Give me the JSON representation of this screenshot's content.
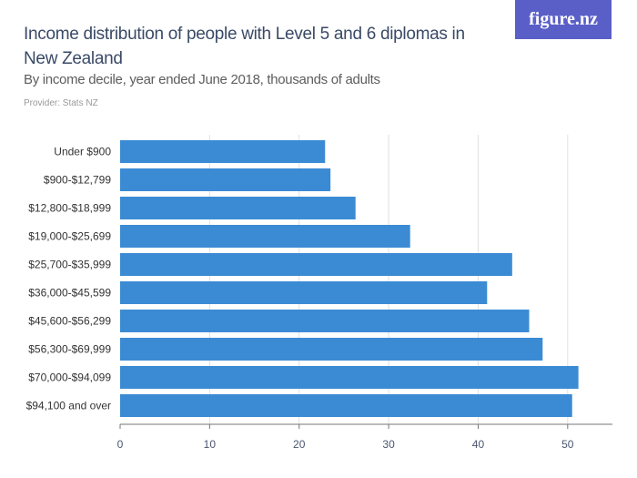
{
  "header": {
    "title": "Income distribution of people with Level 5 and 6 diplomas in New Zealand",
    "subtitle": "By income decile, year ended June 2018, thousands of adults",
    "provider": "Provider: Stats NZ",
    "logo": "figure.nz"
  },
  "chart_data": {
    "type": "bar",
    "orientation": "horizontal",
    "title": "Income distribution of people with Level 5 and 6 diplomas in New Zealand",
    "subtitle": "By income decile, year ended June 2018, thousands of adults",
    "categories": [
      "Under $900",
      "$900-$12,799",
      "$12,800-$18,999",
      "$19,000-$25,699",
      "$25,700-$35,999",
      "$36,000-$45,599",
      "$45,600-$56,299",
      "$56,300-$69,999",
      "$70,000-$94,099",
      "$94,100 and over"
    ],
    "values": [
      22.9,
      23.5,
      26.3,
      32.4,
      43.8,
      41.0,
      45.7,
      47.2,
      51.2,
      50.5
    ],
    "xlim": [
      0,
      55
    ],
    "xticks": [
      0,
      10,
      20,
      30,
      40,
      50
    ],
    "grid": true,
    "bar_color": "#3b8bd4"
  }
}
